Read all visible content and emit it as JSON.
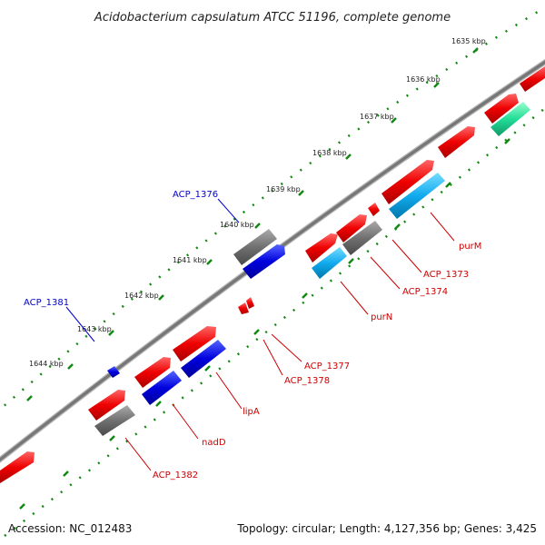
{
  "title": "Acidobacterium capsulatum ATCC 51196, complete genome",
  "footer": {
    "accession": "Accession: NC_012483",
    "summary": "Topology: circular; Length: 4,127,356 bp; Genes: 3,425"
  },
  "ticks": [
    "1635 kbp",
    "1636 kbp",
    "1637 kbp",
    "1638 kbp",
    "1639 kbp",
    "1640 kbp",
    "1641 kbp",
    "1642 kbp",
    "1643 kbp",
    "1644 kbp"
  ],
  "gene_labels": [
    {
      "text": "ACP_1376",
      "color": "#0000cc"
    },
    {
      "text": "ACP_1381",
      "color": "#0000cc"
    },
    {
      "text": "purM",
      "color": "#cc0000"
    },
    {
      "text": "ACP_1373",
      "color": "#cc0000"
    },
    {
      "text": "ACP_1374",
      "color": "#cc0000"
    },
    {
      "text": "purN",
      "color": "#cc0000"
    },
    {
      "text": "ACP_1377",
      "color": "#cc0000"
    },
    {
      "text": "ACP_1378",
      "color": "#cc0000"
    },
    {
      "text": "lipA",
      "color": "#cc0000"
    },
    {
      "text": "nadD",
      "color": "#cc0000"
    },
    {
      "text": "ACP_1382",
      "color": "#cc0000"
    }
  ],
  "colors": {
    "backbone": "#808080",
    "red": "#ee0000",
    "blue": "#0000dd",
    "gray": "#707070",
    "cyan": "#11aaee",
    "green": "#22dd99",
    "tick_dot": "#118811"
  }
}
